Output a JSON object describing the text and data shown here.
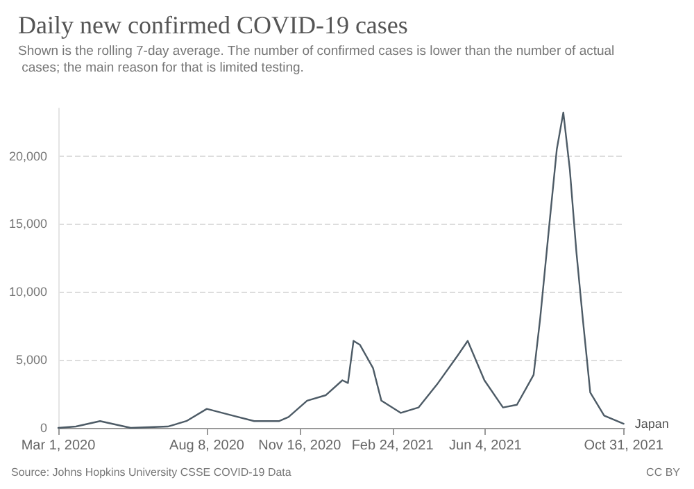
{
  "chart_data": {
    "type": "line",
    "title": "Daily new confirmed COVID-19 cases",
    "subtitle": "Shown is the rolling 7-day average. The number of confirmed cases is lower than the number of actual cases; the main reason for that is limited testing.",
    "annotations": [
      "Source: Johns Hopkins University CSSE COVID-19 Data",
      "CC BY"
    ],
    "x": [
      "2020-03-01",
      "2020-03-20",
      "2020-04-15",
      "2020-05-18",
      "2020-06-27",
      "2020-07-17",
      "2020-08-08",
      "2020-09-05",
      "2020-09-28",
      "2020-10-25",
      "2020-11-04",
      "2020-11-24",
      "2020-12-14",
      "2021-01-01",
      "2021-01-07",
      "2021-01-13",
      "2021-01-20",
      "2021-02-03",
      "2021-02-12",
      "2021-03-05",
      "2021-03-24",
      "2021-04-13",
      "2021-05-05",
      "2021-05-16",
      "2021-06-03",
      "2021-06-23",
      "2021-07-08",
      "2021-07-26",
      "2021-08-02",
      "2021-08-12",
      "2021-08-20",
      "2021-08-27",
      "2021-09-03",
      "2021-09-10",
      "2021-09-17",
      "2021-09-25",
      "2021-10-10",
      "2021-10-31"
    ],
    "series": [
      {
        "name": "Japan",
        "color": "#4d5b66",
        "values": [
          0,
          100,
          500,
          0,
          100,
          500,
          1400,
          900,
          500,
          500,
          800,
          2000,
          2400,
          3500,
          3300,
          6400,
          6100,
          4400,
          2000,
          1100,
          1500,
          3200,
          5300,
          6400,
          3500,
          1500,
          1700,
          3900,
          8000,
          15000,
          20500,
          23200,
          19000,
          13000,
          8000,
          2600,
          900,
          300
        ]
      }
    ],
    "xlim": [
      "2020-03-01",
      "2021-11-01"
    ],
    "xticks": [
      {
        "value": "2020-03-01",
        "label": "Mar 1, 2020"
      },
      {
        "value": "2020-08-08",
        "label": "Aug 8, 2020"
      },
      {
        "value": "2020-11-16",
        "label": "Nov 16, 2020"
      },
      {
        "value": "2021-02-24",
        "label": "Feb 24, 2021"
      },
      {
        "value": "2021-06-04",
        "label": "Jun 4, 2021"
      },
      {
        "value": "2021-10-31",
        "label": "Oct 31, 2021"
      }
    ],
    "ylim": [
      0,
      23500
    ],
    "yticks": [
      0,
      {
        "value": 5000,
        "label": "5,000"
      },
      {
        "value": 10000,
        "label": "10,000"
      },
      {
        "value": 15000,
        "label": "15,000"
      },
      {
        "value": 20000,
        "label": "20,000"
      }
    ],
    "grid": "y",
    "legend": false,
    "marker": "none",
    "line_style": "solid"
  }
}
